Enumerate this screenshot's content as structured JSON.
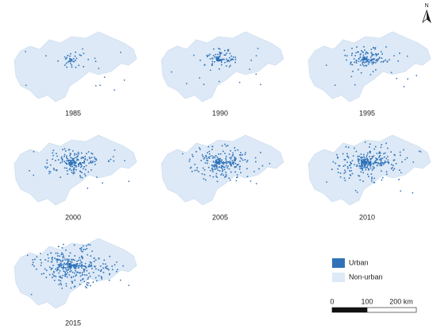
{
  "maps": [
    {
      "label": "1985"
    },
    {
      "label": "1990"
    },
    {
      "label": "1995"
    },
    {
      "label": "2000"
    },
    {
      "label": "2005"
    },
    {
      "label": "2010"
    },
    {
      "label": "2015"
    }
  ],
  "legend": [
    {
      "label": "Urban",
      "color": "#2f72b8"
    },
    {
      "label": "Non-urban",
      "color": "#dde9f6"
    }
  ],
  "scale_bar": {
    "labels": [
      "0",
      "100",
      "200 km"
    ]
  },
  "north_arrow": "N"
}
